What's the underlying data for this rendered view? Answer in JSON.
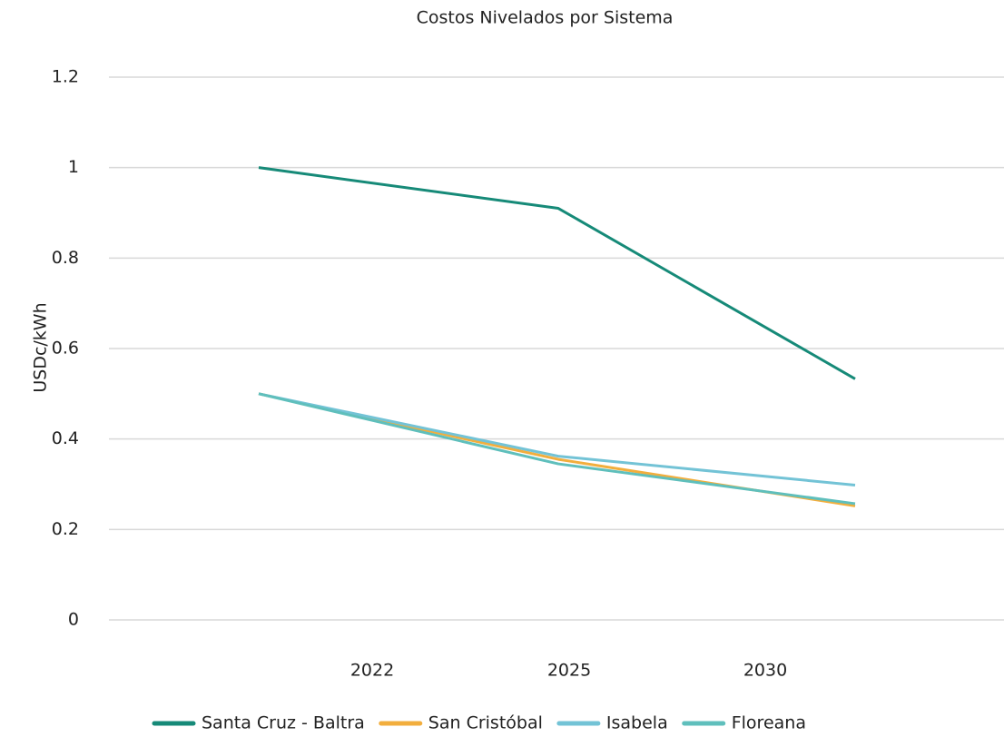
{
  "chart_data": {
    "type": "line",
    "title": "Costos Nivelados por Sistema",
    "y_label": "USDc/kWh",
    "categories": [
      "2022",
      "2025",
      "2030"
    ],
    "series": [
      {
        "name": "Santa Cruz - Baltra",
        "color": "#168a78",
        "values": [
          1.0,
          0.91,
          0.533
        ]
      },
      {
        "name": "San Cristóbal",
        "color": "#f2ae3d",
        "values": [
          0.5,
          0.355,
          0.252
        ]
      },
      {
        "name": "Isabela",
        "color": "#73c3d6",
        "values": [
          0.5,
          0.362,
          0.298
        ]
      },
      {
        "name": "Floreana",
        "color": "#5fbfbc",
        "values": [
          0.5,
          0.345,
          0.257
        ]
      }
    ],
    "ylim": [
      0,
      1.2
    ],
    "yticks": [
      0,
      0.2,
      0.4,
      0.6,
      0.8,
      1,
      1.2
    ],
    "grid": true,
    "legend": "bottom"
  }
}
